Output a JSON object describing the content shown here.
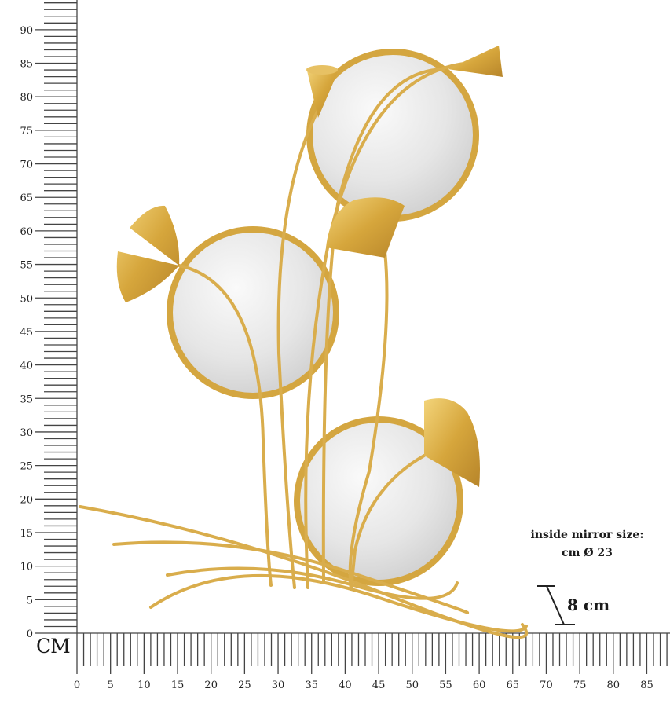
{
  "ruler": {
    "unit": "CM",
    "vertical_labels": [
      "0",
      "5",
      "10",
      "15",
      "20",
      "25",
      "30",
      "35",
      "40",
      "45",
      "50",
      "55",
      "60",
      "65",
      "70",
      "75",
      "80",
      "85",
      "90"
    ],
    "horizontal_labels": [
      "0",
      "5",
      "10",
      "15",
      "20",
      "25",
      "30",
      "35",
      "40",
      "45",
      "50",
      "55",
      "60",
      "65",
      "70",
      "75",
      "80",
      "85"
    ]
  },
  "annotations": {
    "mirror_size_line1": "inside mirror size:",
    "mirror_size_line2": "cm Ø 23",
    "depth": "8 cm"
  },
  "colors": {
    "gold": "#d4a640",
    "gold_dark": "#b8862a",
    "mirror": "#e9e9e9",
    "ruler": "#444444"
  }
}
